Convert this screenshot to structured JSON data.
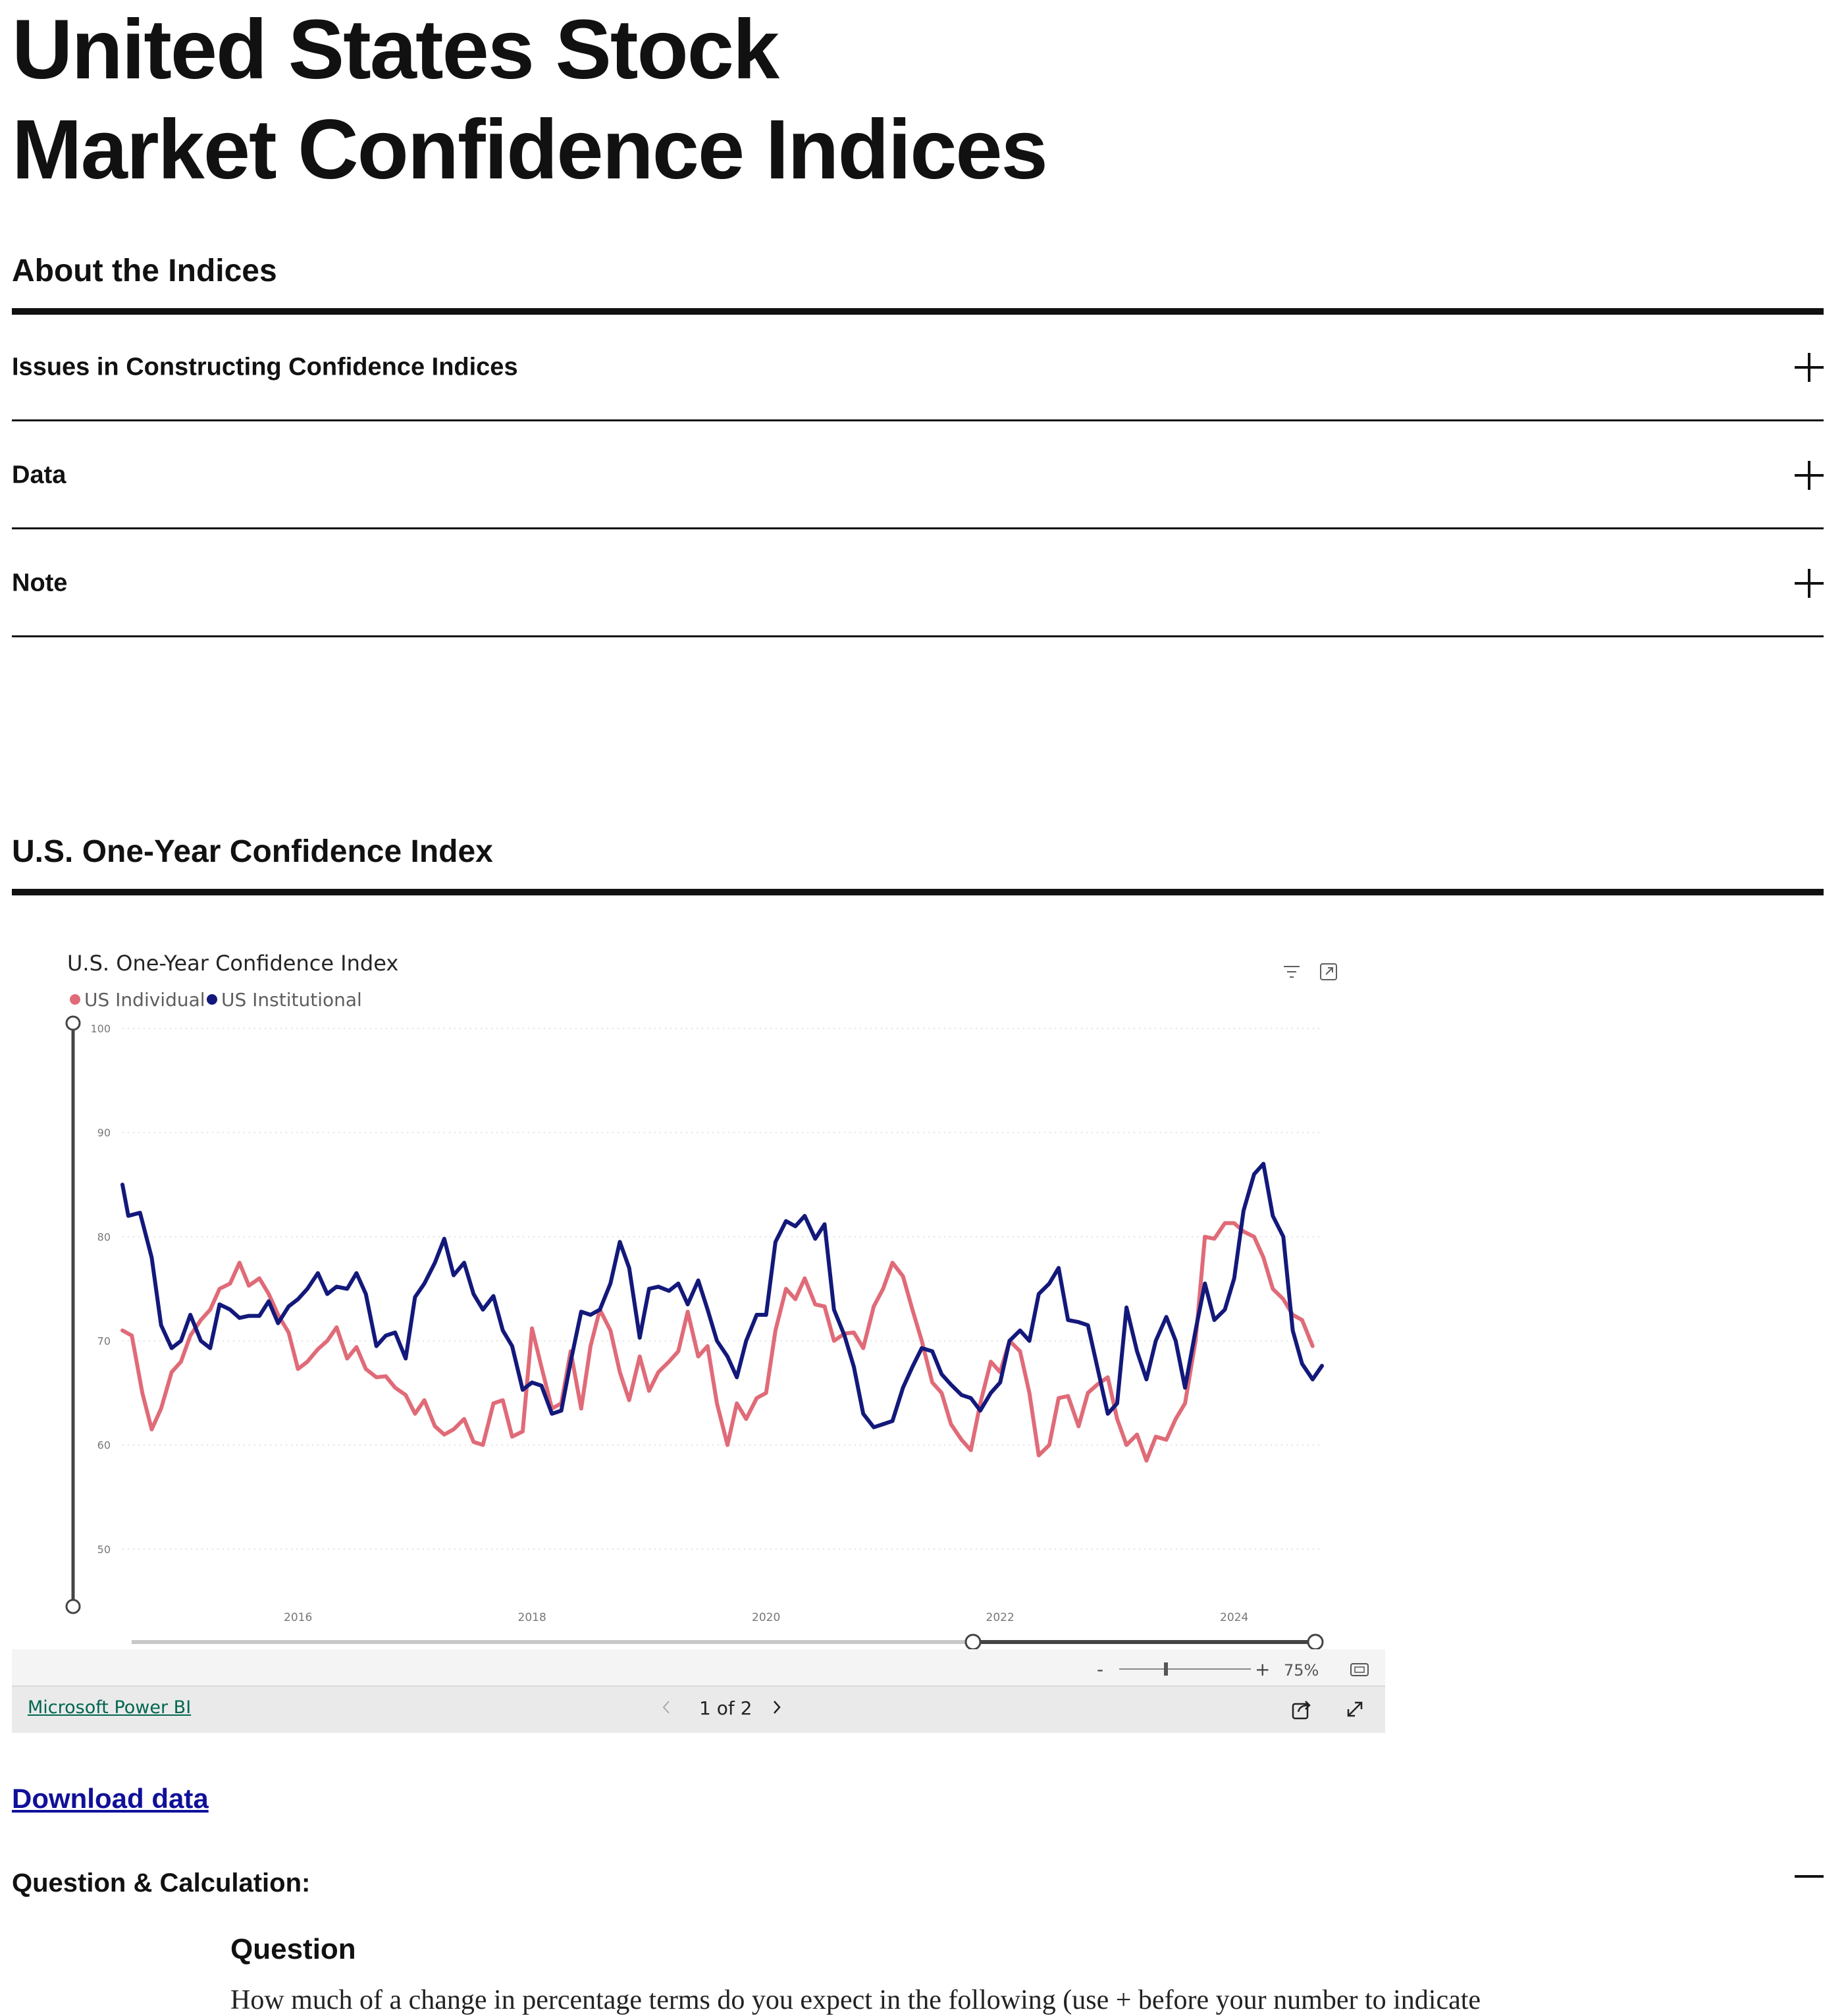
{
  "page": {
    "title_line1": "United States Stock",
    "title_line2": "Market Confidence Indices"
  },
  "about": {
    "heading": "About the Indices",
    "accordion": [
      {
        "label": "Issues in Constructing Confidence Indices",
        "state": "collapsed"
      },
      {
        "label": "Data",
        "state": "collapsed"
      },
      {
        "label": "Note",
        "state": "collapsed"
      }
    ]
  },
  "one_year": {
    "heading": "U.S. One-Year Confidence Index"
  },
  "powerbi": {
    "link_label": "Microsoft Power BI",
    "page_indicator": "1 of 2",
    "zoom_label": "75%",
    "zoom_minus": "-",
    "zoom_plus": "+",
    "prev_icon": "chevron-left-icon",
    "next_icon": "chevron-right-icon"
  },
  "download": {
    "label": "Download data"
  },
  "question_section": {
    "heading": "Question & Calculation:",
    "state": "expanded",
    "sub_heading": "Question",
    "text": "How much of a change in percentage terms do you expect in the following (use + before your number to indicate"
  },
  "chart_data": {
    "type": "line",
    "title": "U.S. One-Year Confidence Index",
    "legend_position": "top-left",
    "grid": true,
    "ylim": [
      45,
      100
    ],
    "yticks": [
      50,
      60,
      70,
      80,
      90,
      100
    ],
    "xlim": [
      2014.5,
      2024.75
    ],
    "xticks": [
      {
        "value": 2016,
        "label": "2016"
      },
      {
        "value": 2018,
        "label": "2018"
      },
      {
        "value": 2020,
        "label": "2020"
      },
      {
        "value": 2022,
        "label": "2022"
      },
      {
        "value": 2024,
        "label": "2024"
      }
    ],
    "series": [
      {
        "name": "US Individual",
        "color": "#e06b78",
        "points": [
          [
            2014.5,
            71.0
          ],
          [
            2014.58,
            70.5
          ],
          [
            2014.67,
            65.0
          ],
          [
            2014.75,
            61.5
          ],
          [
            2014.83,
            63.5
          ],
          [
            2014.92,
            67.0
          ],
          [
            2015.0,
            68.0
          ],
          [
            2015.08,
            70.5
          ],
          [
            2015.17,
            72.0
          ],
          [
            2015.25,
            73.0
          ],
          [
            2015.33,
            75.0
          ],
          [
            2015.42,
            75.5
          ],
          [
            2015.5,
            77.5
          ],
          [
            2015.58,
            75.3
          ],
          [
            2015.67,
            76.0
          ],
          [
            2015.75,
            74.5
          ],
          [
            2015.83,
            72.5
          ],
          [
            2015.92,
            70.8
          ],
          [
            2016.0,
            67.3
          ],
          [
            2016.08,
            68.0
          ],
          [
            2016.17,
            69.2
          ],
          [
            2016.25,
            70.0
          ],
          [
            2016.33,
            71.3
          ],
          [
            2016.42,
            68.3
          ],
          [
            2016.5,
            69.4
          ],
          [
            2016.58,
            67.3
          ],
          [
            2016.67,
            66.5
          ],
          [
            2016.75,
            66.6
          ],
          [
            2016.83,
            65.5
          ],
          [
            2016.92,
            64.8
          ],
          [
            2017.0,
            63.0
          ],
          [
            2017.08,
            64.3
          ],
          [
            2017.17,
            61.8
          ],
          [
            2017.25,
            61.0
          ],
          [
            2017.33,
            61.5
          ],
          [
            2017.42,
            62.5
          ],
          [
            2017.5,
            60.3
          ],
          [
            2017.58,
            60.0
          ],
          [
            2017.67,
            64.0
          ],
          [
            2017.75,
            64.3
          ],
          [
            2017.83,
            60.8
          ],
          [
            2017.92,
            61.3
          ],
          [
            2018.0,
            71.2
          ],
          [
            2018.08,
            67.5
          ],
          [
            2018.17,
            63.5
          ],
          [
            2018.25,
            64.0
          ],
          [
            2018.33,
            69.0
          ],
          [
            2018.42,
            63.5
          ],
          [
            2018.5,
            69.5
          ],
          [
            2018.58,
            73.0
          ],
          [
            2018.67,
            71.0
          ],
          [
            2018.75,
            67.0
          ],
          [
            2018.83,
            64.3
          ],
          [
            2018.92,
            68.5
          ],
          [
            2019.0,
            65.2
          ],
          [
            2019.08,
            67.0
          ],
          [
            2019.17,
            68.0
          ],
          [
            2019.25,
            69.0
          ],
          [
            2019.33,
            72.8
          ],
          [
            2019.42,
            68.5
          ],
          [
            2019.5,
            69.5
          ],
          [
            2019.58,
            64.0
          ],
          [
            2019.67,
            60.0
          ],
          [
            2019.75,
            64.0
          ],
          [
            2019.83,
            62.5
          ],
          [
            2019.92,
            64.5
          ],
          [
            2020.0,
            65.0
          ],
          [
            2020.08,
            71.0
          ],
          [
            2020.17,
            75.0
          ],
          [
            2020.25,
            74.0
          ],
          [
            2020.33,
            76.0
          ],
          [
            2020.42,
            73.5
          ],
          [
            2020.5,
            73.3
          ],
          [
            2020.58,
            70.0
          ],
          [
            2020.67,
            70.7
          ],
          [
            2020.75,
            70.8
          ],
          [
            2020.83,
            69.3
          ],
          [
            2020.92,
            73.3
          ],
          [
            2021.0,
            75.0
          ],
          [
            2021.08,
            77.5
          ],
          [
            2021.17,
            76.2
          ],
          [
            2021.25,
            73.0
          ],
          [
            2021.33,
            70.0
          ],
          [
            2021.42,
            66.0
          ],
          [
            2021.5,
            65.0
          ],
          [
            2021.58,
            62.0
          ],
          [
            2021.67,
            60.5
          ],
          [
            2021.75,
            59.5
          ],
          [
            2021.83,
            64.0
          ],
          [
            2021.92,
            68.0
          ],
          [
            2022.0,
            67.0
          ],
          [
            2022.08,
            70.0
          ],
          [
            2022.17,
            69.0
          ],
          [
            2022.25,
            65.0
          ],
          [
            2022.33,
            59.0
          ],
          [
            2022.42,
            60.0
          ],
          [
            2022.5,
            64.5
          ],
          [
            2022.58,
            64.7
          ],
          [
            2022.67,
            61.8
          ],
          [
            2022.75,
            65.0
          ],
          [
            2022.83,
            65.8
          ],
          [
            2022.92,
            66.5
          ],
          [
            2023.0,
            62.5
          ],
          [
            2023.08,
            60.0
          ],
          [
            2023.17,
            61.0
          ],
          [
            2023.25,
            58.5
          ],
          [
            2023.33,
            60.8
          ],
          [
            2023.42,
            60.5
          ],
          [
            2023.5,
            62.5
          ],
          [
            2023.58,
            64.0
          ],
          [
            2023.67,
            70.0
          ],
          [
            2023.75,
            80.0
          ],
          [
            2023.83,
            79.8
          ],
          [
            2023.92,
            81.3
          ],
          [
            2024.0,
            81.3
          ],
          [
            2024.08,
            80.5
          ],
          [
            2024.17,
            80.0
          ],
          [
            2024.25,
            78.0
          ],
          [
            2024.33,
            75.0
          ],
          [
            2024.42,
            74.0
          ],
          [
            2024.5,
            72.5
          ],
          [
            2024.58,
            72.0
          ],
          [
            2024.67,
            69.5
          ]
        ]
      },
      {
        "name": "US Institutional",
        "color": "#13197a",
        "points": [
          [
            2014.5,
            85.0
          ],
          [
            2014.55,
            82.0
          ],
          [
            2014.65,
            82.3
          ],
          [
            2014.75,
            78.0
          ],
          [
            2014.83,
            71.5
          ],
          [
            2014.92,
            69.3
          ],
          [
            2015.0,
            70.0
          ],
          [
            2015.08,
            72.5
          ],
          [
            2015.17,
            70.0
          ],
          [
            2015.25,
            69.3
          ],
          [
            2015.33,
            73.5
          ],
          [
            2015.42,
            73.0
          ],
          [
            2015.5,
            72.2
          ],
          [
            2015.58,
            72.4
          ],
          [
            2015.67,
            72.4
          ],
          [
            2015.75,
            73.8
          ],
          [
            2015.83,
            71.7
          ],
          [
            2015.92,
            73.3
          ],
          [
            2016.0,
            74.0
          ],
          [
            2016.08,
            75.0
          ],
          [
            2016.17,
            76.5
          ],
          [
            2016.25,
            74.5
          ],
          [
            2016.33,
            75.2
          ],
          [
            2016.42,
            75.0
          ],
          [
            2016.5,
            76.5
          ],
          [
            2016.58,
            74.5
          ],
          [
            2016.67,
            69.5
          ],
          [
            2016.75,
            70.5
          ],
          [
            2016.83,
            70.8
          ],
          [
            2016.92,
            68.3
          ],
          [
            2017.0,
            74.2
          ],
          [
            2017.08,
            75.5
          ],
          [
            2017.17,
            77.5
          ],
          [
            2017.25,
            79.8
          ],
          [
            2017.33,
            76.3
          ],
          [
            2017.42,
            77.5
          ],
          [
            2017.5,
            74.5
          ],
          [
            2017.58,
            73.0
          ],
          [
            2017.67,
            74.3
          ],
          [
            2017.75,
            71.0
          ],
          [
            2017.83,
            69.5
          ],
          [
            2017.92,
            65.3
          ],
          [
            2018.0,
            66.0
          ],
          [
            2018.08,
            65.7
          ],
          [
            2018.17,
            63.0
          ],
          [
            2018.25,
            63.3
          ],
          [
            2018.33,
            68.0
          ],
          [
            2018.42,
            72.8
          ],
          [
            2018.5,
            72.5
          ],
          [
            2018.58,
            73.0
          ],
          [
            2018.67,
            75.5
          ],
          [
            2018.75,
            79.5
          ],
          [
            2018.83,
            77.0
          ],
          [
            2018.92,
            70.3
          ],
          [
            2019.0,
            75.0
          ],
          [
            2019.08,
            75.2
          ],
          [
            2019.17,
            74.8
          ],
          [
            2019.25,
            75.5
          ],
          [
            2019.33,
            73.5
          ],
          [
            2019.42,
            75.8
          ],
          [
            2019.5,
            73.0
          ],
          [
            2019.58,
            70.0
          ],
          [
            2019.67,
            68.5
          ],
          [
            2019.75,
            66.5
          ],
          [
            2019.83,
            70.0
          ],
          [
            2019.92,
            72.5
          ],
          [
            2020.0,
            72.5
          ],
          [
            2020.08,
            79.5
          ],
          [
            2020.17,
            81.5
          ],
          [
            2020.25,
            81.0
          ],
          [
            2020.33,
            82.0
          ],
          [
            2020.42,
            79.8
          ],
          [
            2020.5,
            81.2
          ],
          [
            2020.58,
            73.0
          ],
          [
            2020.67,
            70.5
          ],
          [
            2020.75,
            67.5
          ],
          [
            2020.83,
            63.0
          ],
          [
            2020.92,
            61.7
          ],
          [
            2021.0,
            62.0
          ],
          [
            2021.08,
            62.3
          ],
          [
            2021.17,
            65.5
          ],
          [
            2021.25,
            67.5
          ],
          [
            2021.33,
            69.3
          ],
          [
            2021.42,
            69.0
          ],
          [
            2021.5,
            66.8
          ],
          [
            2021.58,
            65.8
          ],
          [
            2021.67,
            64.8
          ],
          [
            2021.75,
            64.5
          ],
          [
            2021.83,
            63.3
          ],
          [
            2021.92,
            65.0
          ],
          [
            2022.0,
            66.0
          ],
          [
            2022.08,
            70.0
          ],
          [
            2022.17,
            71.0
          ],
          [
            2022.25,
            70.0
          ],
          [
            2022.33,
            74.5
          ],
          [
            2022.42,
            75.5
          ],
          [
            2022.5,
            77.0
          ],
          [
            2022.58,
            72.0
          ],
          [
            2022.67,
            71.8
          ],
          [
            2022.75,
            71.5
          ],
          [
            2022.83,
            67.5
          ],
          [
            2022.92,
            63.0
          ],
          [
            2023.0,
            64.0
          ],
          [
            2023.08,
            73.2
          ],
          [
            2023.17,
            69.0
          ],
          [
            2023.25,
            66.3
          ],
          [
            2023.33,
            70.0
          ],
          [
            2023.42,
            72.3
          ],
          [
            2023.5,
            70.0
          ],
          [
            2023.58,
            65.5
          ],
          [
            2023.67,
            71.0
          ],
          [
            2023.75,
            75.5
          ],
          [
            2023.83,
            72.0
          ],
          [
            2023.92,
            73.0
          ],
          [
            2024.0,
            76.0
          ],
          [
            2024.08,
            82.5
          ],
          [
            2024.17,
            86.0
          ],
          [
            2024.25,
            87.0
          ],
          [
            2024.33,
            82.0
          ],
          [
            2024.42,
            80.0
          ],
          [
            2024.5,
            71.0
          ],
          [
            2024.58,
            67.8
          ],
          [
            2024.67,
            66.3
          ],
          [
            2024.75,
            67.6
          ]
        ]
      }
    ]
  }
}
